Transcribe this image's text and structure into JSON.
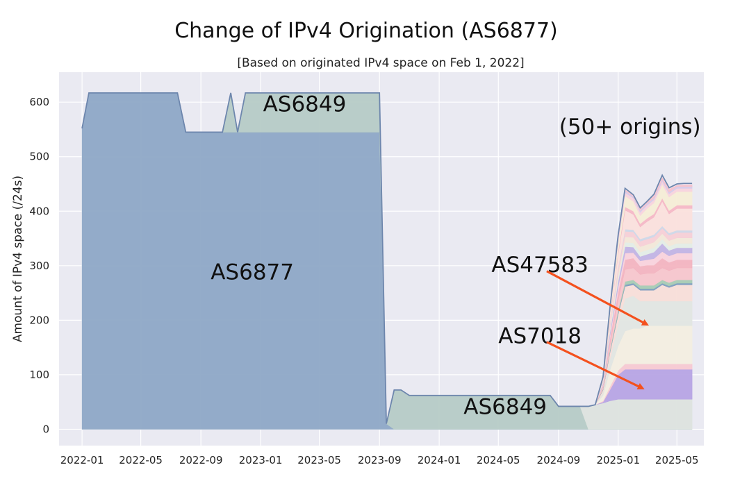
{
  "chart_data": {
    "type": "area",
    "title": "Change of IPv4 Origination (AS6877)",
    "subtitle": "[Based on originated IPv4 space on Feb 1, 2022]",
    "xlabel": "",
    "ylabel": "Amount of IPv4 space (/24s)",
    "ylim": [
      -30,
      655
    ],
    "xlim": [
      "2021-11-15",
      "2025-06-25"
    ],
    "grid": true,
    "y_ticks": [
      "0",
      "100",
      "200",
      "300",
      "400",
      "500",
      "600"
    ],
    "x_ticks": [
      "2022-01",
      "2022-05",
      "2022-09",
      "2023-01",
      "2023-05",
      "2023-09",
      "2024-01",
      "2024-05",
      "2024-09",
      "2025-01",
      "2025-05"
    ],
    "x": [
      "2022-01-01",
      "2022-01-15",
      "2022-07-15",
      "2022-08-01",
      "2022-10-15",
      "2022-11-01",
      "2022-11-15",
      "2022-12-01",
      "2023-09-01",
      "2023-09-15",
      "2023-10-01",
      "2023-10-15",
      "2023-11-01",
      "2024-08-01",
      "2024-08-15",
      "2024-09-01",
      "2024-10-15",
      "2024-11-01",
      "2024-11-15",
      "2024-12-01",
      "2024-12-15",
      "2025-01-01",
      "2025-01-15",
      "2025-02-01",
      "2025-02-15",
      "2025-03-01",
      "2025-03-15",
      "2025-04-01",
      "2025-04-15",
      "2025-05-01",
      "2025-05-15",
      "2025-06-01"
    ],
    "series": [
      {
        "name": "AS6877",
        "color": "#8ea8c6",
        "values": [
          552,
          617,
          617,
          545,
          545,
          545,
          545,
          545,
          545,
          10,
          0,
          0,
          0,
          0,
          0,
          0,
          0,
          0,
          0,
          0,
          0,
          0,
          0,
          0,
          0,
          0,
          0,
          0,
          0,
          0,
          0,
          0
        ]
      },
      {
        "name": "AS6849",
        "color": "#b6cbc6",
        "values": [
          0,
          0,
          0,
          0,
          0,
          72,
          0,
          72,
          72,
          0,
          72,
          72,
          62,
          62,
          62,
          42,
          42,
          0,
          0,
          0,
          0,
          0,
          0,
          0,
          0,
          0,
          0,
          0,
          0,
          0,
          0,
          0
        ]
      },
      {
        "name": "",
        "color": "#dde3de",
        "values": [
          0,
          0,
          0,
          0,
          0,
          0,
          0,
          0,
          0,
          0,
          0,
          0,
          0,
          0,
          0,
          0,
          0,
          42,
          45,
          48,
          52,
          55,
          55,
          55,
          55,
          55,
          55,
          55,
          55,
          55,
          55,
          55
        ]
      },
      {
        "name": "AS7018",
        "color": "#b7a4e4",
        "values": [
          0,
          0,
          0,
          0,
          0,
          0,
          0,
          0,
          0,
          0,
          0,
          0,
          0,
          0,
          0,
          0,
          0,
          0,
          0,
          2,
          20,
          45,
          55,
          55,
          55,
          55,
          55,
          55,
          55,
          55,
          55,
          55
        ]
      },
      {
        "name": "",
        "color": "#f7c9d2",
        "values": [
          0,
          0,
          0,
          0,
          0,
          0,
          0,
          0,
          0,
          0,
          0,
          0,
          0,
          0,
          0,
          0,
          0,
          0,
          0,
          2,
          6,
          8,
          10,
          10,
          10,
          10,
          10,
          10,
          10,
          10,
          10,
          10
        ]
      },
      {
        "name": "",
        "color": "#f3eee0",
        "values": [
          0,
          0,
          0,
          0,
          0,
          0,
          0,
          0,
          0,
          0,
          0,
          0,
          0,
          0,
          0,
          0,
          0,
          0,
          0,
          10,
          30,
          45,
          60,
          65,
          65,
          70,
          70,
          70,
          70,
          70,
          70,
          70
        ]
      },
      {
        "name": "AS47583",
        "color": "#e2e6e1",
        "values": [
          0,
          0,
          0,
          0,
          0,
          0,
          0,
          0,
          0,
          0,
          0,
          0,
          0,
          0,
          0,
          0,
          0,
          0,
          0,
          5,
          20,
          40,
          60,
          60,
          50,
          45,
          45,
          45,
          45,
          45,
          45,
          45
        ]
      },
      {
        "name": "",
        "color": "#f8ded8",
        "values": [
          0,
          0,
          0,
          0,
          0,
          0,
          0,
          0,
          0,
          0,
          0,
          0,
          0,
          0,
          0,
          0,
          0,
          0,
          0,
          5,
          12,
          18,
          22,
          20,
          20,
          20,
          20,
          30,
          25,
          30,
          30,
          30
        ]
      },
      {
        "name": "",
        "color": "#7f9ec0",
        "values": [
          0,
          0,
          0,
          0,
          0,
          0,
          0,
          0,
          0,
          0,
          0,
          0,
          0,
          0,
          0,
          0,
          0,
          0,
          0,
          1,
          2,
          3,
          3,
          3,
          3,
          3,
          3,
          3,
          3,
          3,
          3,
          3
        ]
      },
      {
        "name": "",
        "color": "#a8cbb4",
        "values": [
          0,
          0,
          0,
          0,
          0,
          0,
          0,
          0,
          0,
          0,
          0,
          0,
          0,
          0,
          0,
          0,
          0,
          0,
          0,
          1,
          3,
          5,
          6,
          6,
          6,
          6,
          6,
          6,
          6,
          6,
          6,
          6
        ]
      },
      {
        "name": "",
        "color": "#f7c6cc",
        "values": [
          0,
          0,
          0,
          0,
          0,
          0,
          0,
          0,
          0,
          0,
          0,
          0,
          0,
          0,
          0,
          0,
          0,
          0,
          0,
          3,
          10,
          18,
          22,
          22,
          20,
          22,
          22,
          22,
          22,
          22,
          22,
          22
        ]
      },
      {
        "name": "",
        "color": "#f3b4c0",
        "values": [
          0,
          0,
          0,
          0,
          0,
          0,
          0,
          0,
          0,
          0,
          0,
          0,
          0,
          0,
          0,
          0,
          0,
          0,
          0,
          3,
          10,
          15,
          18,
          18,
          15,
          15,
          15,
          18,
          15,
          15,
          15,
          15
        ]
      },
      {
        "name": "",
        "color": "#f9d3dc",
        "values": [
          0,
          0,
          0,
          0,
          0,
          0,
          0,
          0,
          0,
          0,
          0,
          0,
          0,
          0,
          0,
          0,
          0,
          0,
          0,
          2,
          6,
          10,
          12,
          10,
          10,
          10,
          12,
          12,
          12,
          12,
          12,
          12
        ]
      },
      {
        "name": "",
        "color": "#c2b4e4",
        "values": [
          0,
          0,
          0,
          0,
          0,
          0,
          0,
          0,
          0,
          0,
          0,
          0,
          0,
          0,
          0,
          0,
          0,
          0,
          0,
          2,
          6,
          10,
          12,
          10,
          8,
          10,
          12,
          15,
          10,
          10,
          10,
          10
        ]
      },
      {
        "name": "",
        "color": "#e4ede6",
        "values": [
          0,
          0,
          0,
          0,
          0,
          0,
          0,
          0,
          0,
          0,
          0,
          0,
          0,
          0,
          0,
          0,
          0,
          0,
          0,
          1,
          4,
          6,
          8,
          8,
          8,
          8,
          8,
          8,
          8,
          8,
          8,
          8
        ]
      },
      {
        "name": "",
        "color": "#f2e8d8",
        "values": [
          0,
          0,
          0,
          0,
          0,
          0,
          0,
          0,
          0,
          0,
          0,
          0,
          0,
          0,
          0,
          0,
          0,
          0,
          0,
          1,
          5,
          8,
          10,
          10,
          10,
          10,
          10,
          10,
          10,
          10,
          10,
          10
        ]
      },
      {
        "name": "",
        "color": "#f7d0d6",
        "values": [
          0,
          0,
          0,
          0,
          0,
          0,
          0,
          0,
          0,
          0,
          0,
          0,
          0,
          0,
          0,
          0,
          0,
          0,
          0,
          1,
          5,
          8,
          10,
          10,
          10,
          10,
          10,
          10,
          10,
          10,
          10,
          10
        ]
      },
      {
        "name": "",
        "color": "#cfd8e8",
        "values": [
          0,
          0,
          0,
          0,
          0,
          0,
          0,
          0,
          0,
          0,
          0,
          0,
          0,
          0,
          0,
          0,
          0,
          0,
          0,
          1,
          2,
          3,
          4,
          4,
          4,
          4,
          4,
          4,
          4,
          4,
          4,
          4
        ]
      },
      {
        "name": "",
        "color": "#fbe0dc",
        "values": [
          0,
          0,
          0,
          0,
          0,
          0,
          0,
          0,
          0,
          0,
          0,
          0,
          0,
          0,
          0,
          0,
          0,
          0,
          0,
          2,
          10,
          25,
          35,
          28,
          22,
          28,
          32,
          45,
          35,
          40,
          40,
          40
        ]
      },
      {
        "name": "",
        "color": "#f5b8c6",
        "values": [
          0,
          0,
          0,
          0,
          0,
          0,
          0,
          0,
          0,
          0,
          0,
          0,
          0,
          0,
          0,
          0,
          0,
          0,
          0,
          1,
          3,
          5,
          6,
          6,
          6,
          6,
          6,
          6,
          6,
          6,
          6,
          6
        ]
      },
      {
        "name": "",
        "color": "#f5edd6",
        "values": [
          0,
          0,
          0,
          0,
          0,
          0,
          0,
          0,
          0,
          0,
          0,
          0,
          0,
          0,
          0,
          0,
          0,
          0,
          0,
          2,
          8,
          15,
          20,
          18,
          15,
          18,
          20,
          25,
          25,
          25,
          25,
          25
        ]
      },
      {
        "name": "",
        "color": "#f8d4dd",
        "values": [
          0,
          0,
          0,
          0,
          0,
          0,
          0,
          0,
          0,
          0,
          0,
          0,
          0,
          0,
          0,
          0,
          0,
          0,
          0,
          1,
          3,
          5,
          6,
          6,
          6,
          6,
          6,
          6,
          6,
          6,
          6,
          6
        ]
      },
      {
        "name": "",
        "color": "#d4ccec",
        "values": [
          0,
          0,
          0,
          0,
          0,
          0,
          0,
          0,
          0,
          0,
          0,
          0,
          0,
          0,
          0,
          0,
          0,
          0,
          0,
          1,
          2,
          3,
          3,
          3,
          3,
          3,
          3,
          3,
          3,
          3,
          3,
          3
        ]
      },
      {
        "name": "",
        "color": "#f6c2cc",
        "values": [
          0,
          0,
          0,
          0,
          0,
          0,
          0,
          0,
          0,
          0,
          0,
          0,
          0,
          0,
          0,
          0,
          0,
          0,
          0,
          1,
          2,
          5,
          3,
          2,
          3,
          3,
          5,
          5,
          6,
          3,
          4,
          4
        ]
      },
      {
        "name": "",
        "color": "#ece6f0",
        "values": [
          0,
          0,
          0,
          0,
          0,
          0,
          0,
          0,
          0,
          0,
          0,
          0,
          0,
          0,
          0,
          0,
          0,
          0,
          0,
          0,
          1,
          2,
          2,
          1,
          2,
          1,
          2,
          3,
          2,
          2,
          2,
          2
        ]
      }
    ],
    "annotations": [
      {
        "text": "AS6849",
        "x": "2023-04-01",
        "y": 583
      },
      {
        "text": "(50+ origins)",
        "x": "2025-01-25",
        "y": 542
      },
      {
        "text": "AS6877",
        "x": "2022-12-15",
        "y": 275
      },
      {
        "text": "AS47583",
        "x": "2024-07-25",
        "y": 288
      },
      {
        "text": "AS7018",
        "x": "2024-07-25",
        "y": 158
      },
      {
        "text": "AS6849",
        "x": "2024-05-15",
        "y": 28
      }
    ],
    "arrows": [
      {
        "label": "AS47583",
        "from": [
          "2024-08-08",
          290
        ],
        "to": [
          "2025-03-01",
          192
        ]
      },
      {
        "label": "AS7018",
        "from": [
          "2024-08-08",
          160
        ],
        "to": [
          "2025-02-20",
          75
        ]
      }
    ],
    "arrow_color": "#f4511e"
  }
}
